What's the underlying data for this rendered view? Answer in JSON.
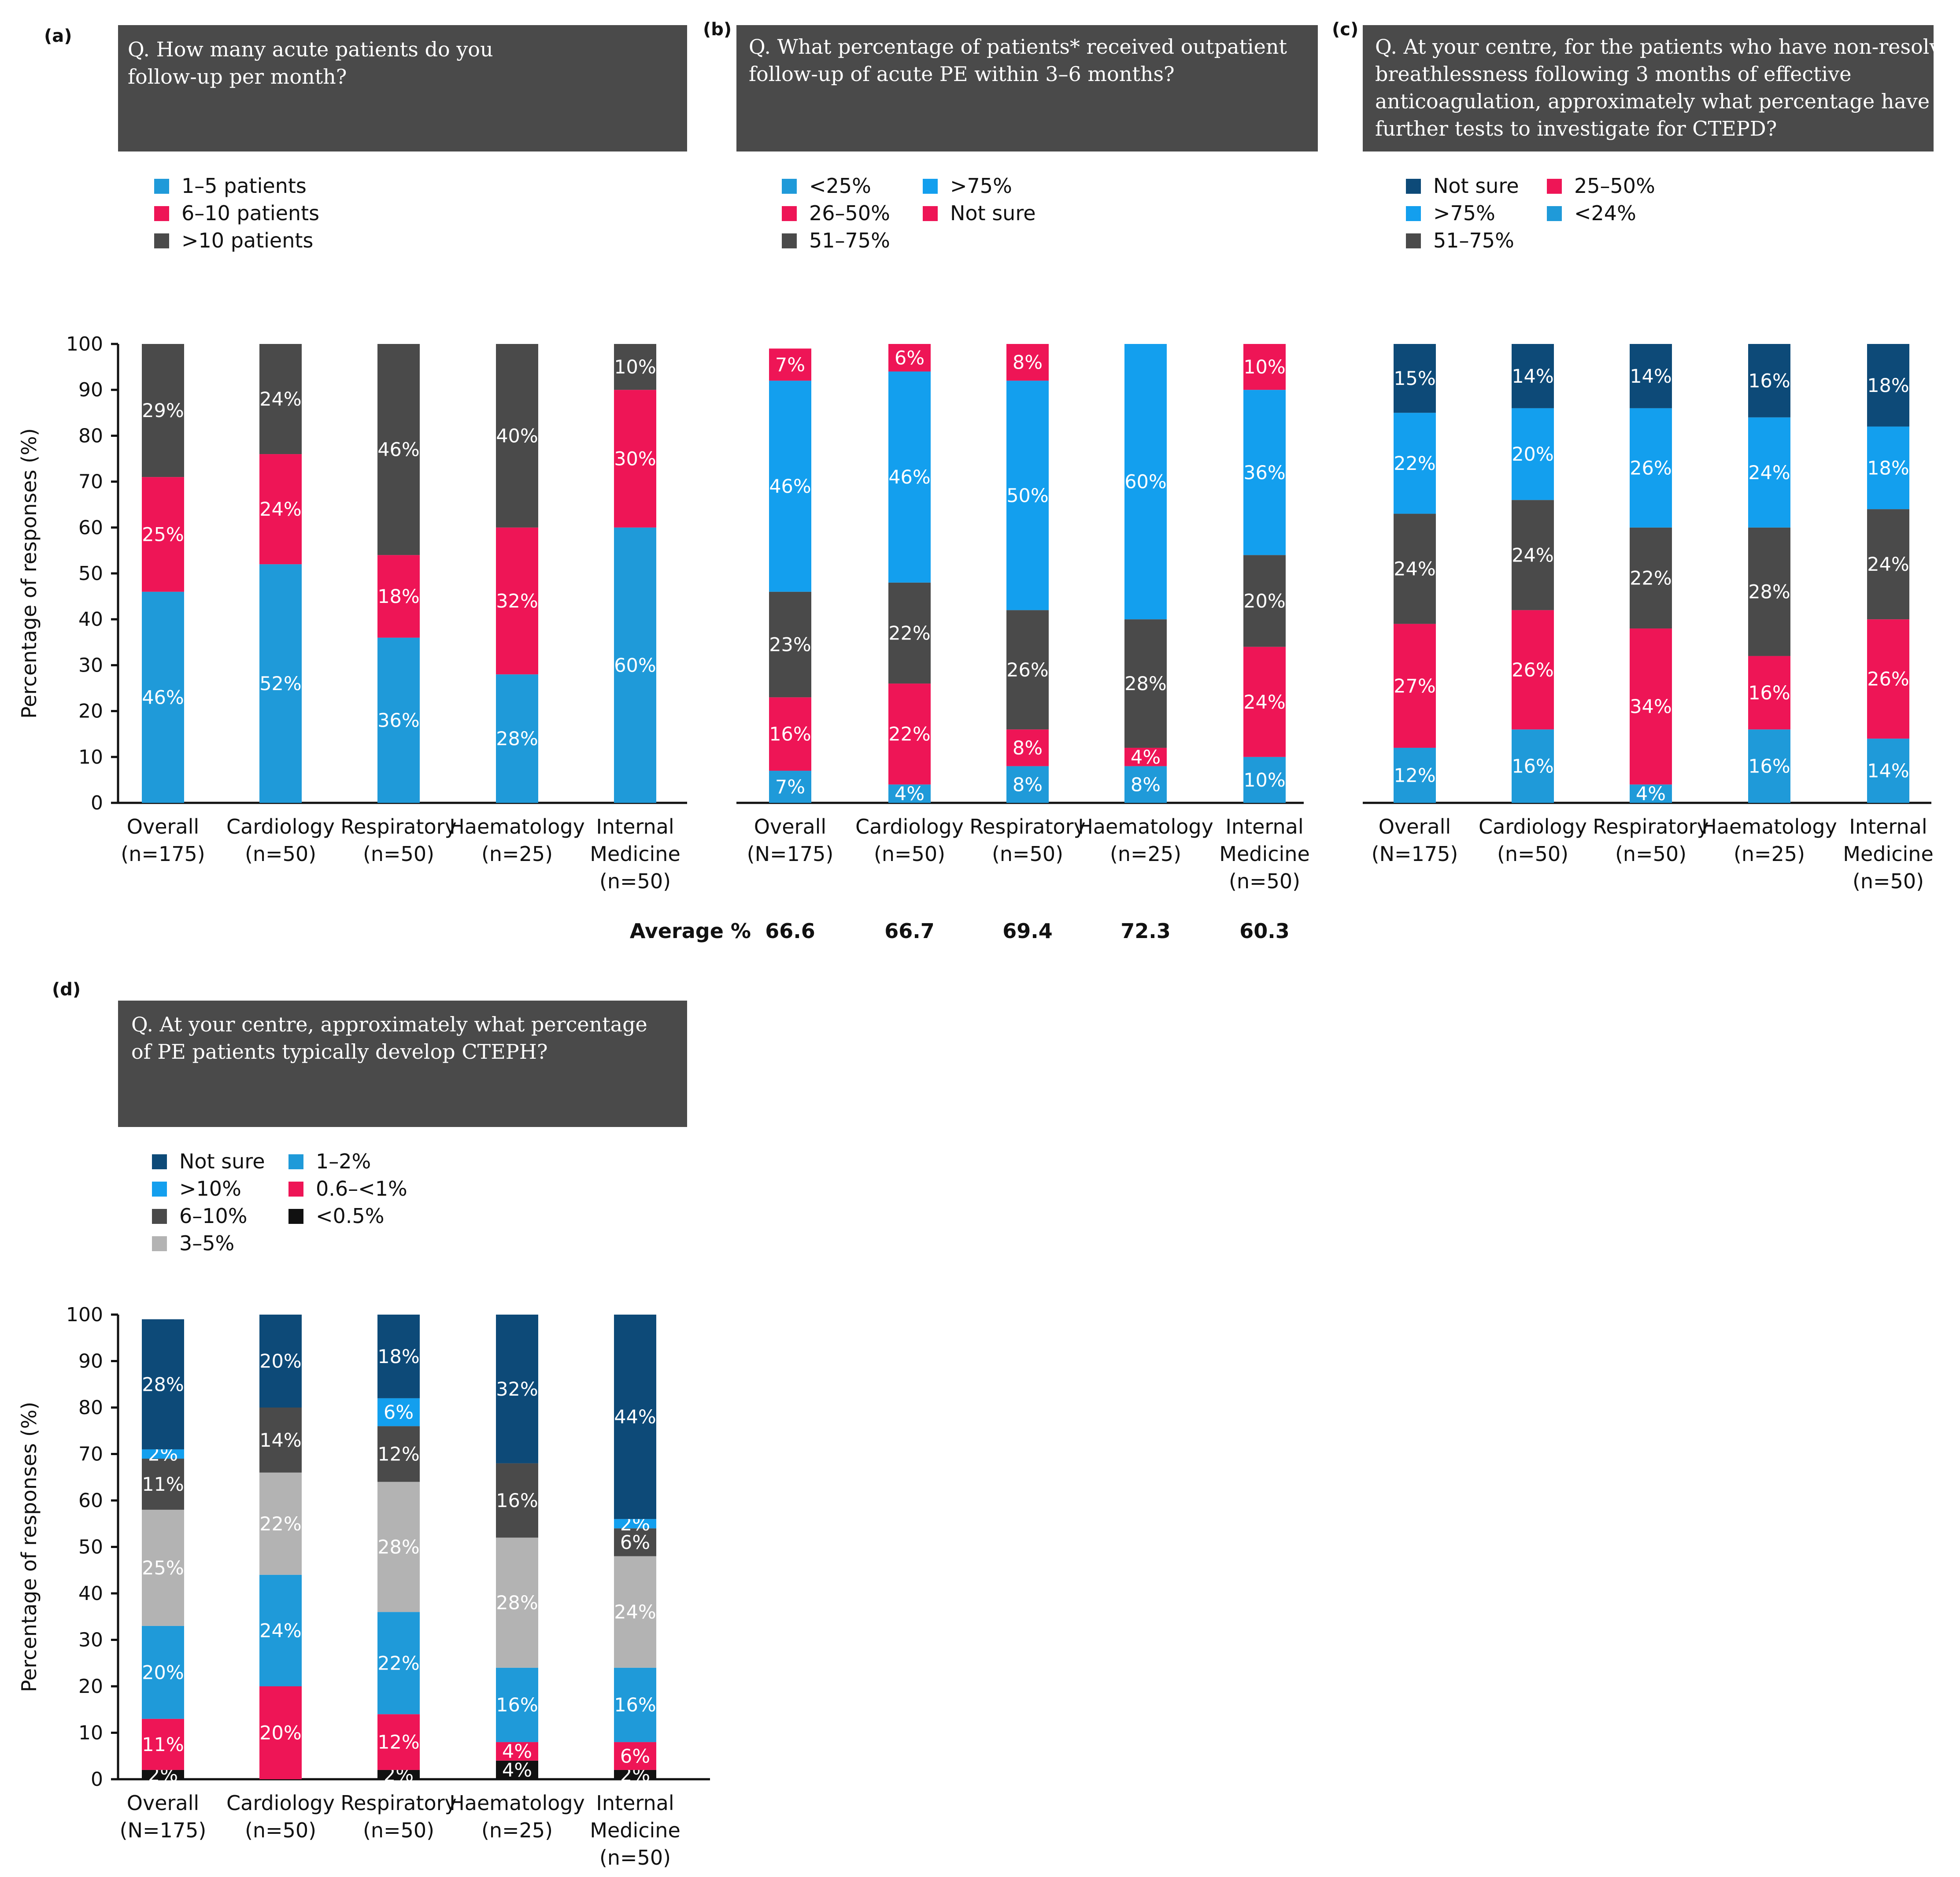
{
  "colors": {
    "dark_navy": "#0d4a78",
    "bright_blue": "#139fee",
    "medium_blue": "#1f9ad9",
    "pink": "#ee1556",
    "dark_gray": "#4a4a4a",
    "light_gray": "#b3b3b3",
    "black": "#111111",
    "header_bg": "#4a4a4a"
  },
  "chart_data": [
    {
      "panel": "(a)",
      "type": "bar",
      "stacked": true,
      "question": [
        "Q. How many acute patients do you",
        "follow-up per month?"
      ],
      "ylabel": "Percentage of responses (%)",
      "ylim": [
        0,
        100
      ],
      "yticks": [
        0,
        10,
        20,
        30,
        40,
        50,
        60,
        70,
        80,
        90,
        100
      ],
      "categories": [
        [
          "Overall",
          "(n=175)"
        ],
        [
          "Cardiology",
          "(n=50)"
        ],
        [
          "Respiratory",
          "(n=50)"
        ],
        [
          "Haematology",
          "(n=25)"
        ],
        [
          "Internal",
          "Medicine",
          "(n=50)"
        ]
      ],
      "legend": [
        {
          "label": "1–5 patients",
          "color": "#1f9ad9"
        },
        {
          "label": "6–10 patients",
          "color": "#ee1556"
        },
        {
          "label": ">10 patients",
          "color": "#4a4a4a"
        }
      ],
      "legend_columns": 1,
      "series": [
        {
          "name": "1–5 patients",
          "color": "#1f9ad9",
          "values": [
            46,
            52,
            36,
            28,
            60
          ],
          "labels": [
            "46%",
            "52%",
            "36%",
            "28%",
            "60%"
          ]
        },
        {
          "name": "6–10 patients",
          "color": "#ee1556",
          "values": [
            25,
            24,
            18,
            32,
            30
          ],
          "labels": [
            "25%",
            "24%",
            "18%",
            "32%",
            "30%"
          ]
        },
        {
          "name": ">10 patients",
          "color": "#4a4a4a",
          "values": [
            29,
            24,
            46,
            40,
            10
          ],
          "labels": [
            "29%",
            "24%",
            "46%",
            "40%",
            "10%"
          ]
        }
      ]
    },
    {
      "panel": "(b)",
      "type": "bar",
      "stacked": true,
      "question": [
        "Q. What percentage of patients* received outpatient",
        "follow-up of acute PE within 3–6 months?"
      ],
      "ylim": [
        0,
        100
      ],
      "categories": [
        [
          "Overall",
          "(N=175)"
        ],
        [
          "Cardiology",
          "(n=50)"
        ],
        [
          "Respiratory",
          "(n=50)"
        ],
        [
          "Haematology",
          "(n=25)"
        ],
        [
          "Internal",
          "Medicine",
          "(n=50)"
        ]
      ],
      "legend": [
        {
          "label": "<25%",
          "color": "#1f9ad9"
        },
        {
          "label": "26–50%",
          "color": "#ee1556"
        },
        {
          "label": "51–75%",
          "color": "#4a4a4a"
        },
        {
          "label": ">75%",
          "color": "#139fee"
        },
        {
          "label": "Not sure",
          "color": "#ee1556"
        }
      ],
      "legend_columns": 2,
      "series": [
        {
          "name": "<25%",
          "color": "#1f9ad9",
          "values": [
            7,
            4,
            8,
            8,
            10
          ],
          "labels": [
            "7%",
            "4%",
            "8%",
            "8%",
            "10%"
          ]
        },
        {
          "name": "26–50%",
          "color": "#ee1556",
          "values": [
            16,
            22,
            8,
            4,
            24
          ],
          "labels": [
            "16%",
            "22%",
            "8%",
            "4%",
            "24%"
          ]
        },
        {
          "name": "51–75%",
          "color": "#4a4a4a",
          "values": [
            23,
            22,
            26,
            28,
            20
          ],
          "labels": [
            "23%",
            "22%",
            "26%",
            "28%",
            "20%"
          ]
        },
        {
          "name": ">75%",
          "color": "#139fee",
          "values": [
            46,
            46,
            50,
            60,
            36
          ],
          "labels": [
            "46%",
            "46%",
            "50%",
            "60%",
            "36%"
          ]
        },
        {
          "name": "Not sure",
          "color": "#ee1556",
          "values": [
            7,
            6,
            8,
            0,
            10
          ],
          "labels": [
            "7%",
            "6%",
            "8%",
            "",
            "10%"
          ]
        }
      ],
      "average_label": "Average %",
      "averages": [
        "66.6",
        "66.7",
        "69.4",
        "72.3",
        "60.3"
      ]
    },
    {
      "panel": "(c)",
      "type": "bar",
      "stacked": true,
      "question": [
        "Q. At your centre, for the patients who have non-resolving",
        "breathlessness following 3 months of effective",
        "anticoagulation, approximately what percentage have",
        "further tests to investigate for CTEPD?"
      ],
      "ylim": [
        0,
        100
      ],
      "categories": [
        [
          "Overall",
          "(N=175)"
        ],
        [
          "Cardiology",
          "(n=50)"
        ],
        [
          "Respiratory",
          "(n=50)"
        ],
        [
          "Haematology",
          "(n=25)"
        ],
        [
          "Internal",
          "Medicine",
          "(n=50)"
        ]
      ],
      "legend": [
        {
          "label": "Not sure",
          "color": "#0d4a78"
        },
        {
          "label": ">75%",
          "color": "#139fee"
        },
        {
          "label": "51–75%",
          "color": "#4a4a4a"
        },
        {
          "label": "25–50%",
          "color": "#ee1556"
        },
        {
          "label": "<24%",
          "color": "#1f9ad9"
        }
      ],
      "legend_columns": 2,
      "series": [
        {
          "name": "<24%",
          "color": "#1f9ad9",
          "values": [
            12,
            16,
            4,
            16,
            14
          ],
          "labels": [
            "12%",
            "16%",
            "4%",
            "16%",
            "14%"
          ]
        },
        {
          "name": "25–50%",
          "color": "#ee1556",
          "values": [
            27,
            26,
            34,
            16,
            26
          ],
          "labels": [
            "27%",
            "26%",
            "34%",
            "16%",
            "26%"
          ]
        },
        {
          "name": "51–75%",
          "color": "#4a4a4a",
          "values": [
            24,
            24,
            22,
            28,
            24
          ],
          "labels": [
            "24%",
            "24%",
            "22%",
            "28%",
            "24%"
          ]
        },
        {
          "name": ">75%",
          "color": "#139fee",
          "values": [
            22,
            20,
            26,
            24,
            18
          ],
          "labels": [
            "22%",
            "20%",
            "26%",
            "24%",
            "18%"
          ]
        },
        {
          "name": "Not sure",
          "color": "#0d4a78",
          "values": [
            15,
            14,
            14,
            16,
            18
          ],
          "labels": [
            "15%",
            "14%",
            "14%",
            "16%",
            "18%"
          ]
        }
      ]
    },
    {
      "panel": "(d)",
      "type": "bar",
      "stacked": true,
      "question": [
        "Q. At your centre, approximately what percentage",
        "of PE patients typically develop CTEPH?"
      ],
      "ylabel": "Percentage of responses (%)",
      "ylim": [
        0,
        100
      ],
      "yticks": [
        0,
        10,
        20,
        30,
        40,
        50,
        60,
        70,
        80,
        90,
        100
      ],
      "categories": [
        [
          "Overall",
          "(N=175)"
        ],
        [
          "Cardiology",
          "(n=50)"
        ],
        [
          "Respiratory",
          "(n=50)"
        ],
        [
          "Haematology",
          "(n=25)"
        ],
        [
          "Internal",
          "Medicine",
          "(n=50)"
        ]
      ],
      "legend": [
        {
          "label": "Not sure",
          "color": "#0d4a78"
        },
        {
          "label": ">10%",
          "color": "#139fee"
        },
        {
          "label": "6–10%",
          "color": "#4a4a4a"
        },
        {
          "label": "3–5%",
          "color": "#b3b3b3"
        },
        {
          "label": "1–2%",
          "color": "#1f9ad9"
        },
        {
          "label": "0.6–<1%",
          "color": "#ee1556"
        },
        {
          "label": "<0.5%",
          "color": "#111111"
        }
      ],
      "legend_columns": 2,
      "series": [
        {
          "name": "<0.5%",
          "color": "#111111",
          "values": [
            2,
            0,
            2,
            4,
            2
          ],
          "labels": [
            "2%",
            "",
            "2%",
            "4%",
            "2%"
          ]
        },
        {
          "name": "0.6–<1%",
          "color": "#ee1556",
          "values": [
            11,
            20,
            12,
            4,
            6
          ],
          "labels": [
            "11%",
            "20%",
            "12%",
            "4%",
            "6%"
          ]
        },
        {
          "name": "1–2%",
          "color": "#1f9ad9",
          "values": [
            20,
            24,
            22,
            16,
            16
          ],
          "labels": [
            "20%",
            "24%",
            "22%",
            "16%",
            "16%"
          ]
        },
        {
          "name": "3–5%",
          "color": "#b3b3b3",
          "values": [
            25,
            22,
            28,
            28,
            24
          ],
          "labels": [
            "25%",
            "22%",
            "28%",
            "28%",
            "24%"
          ]
        },
        {
          "name": "6–10%",
          "color": "#4a4a4a",
          "values": [
            11,
            14,
            12,
            16,
            6
          ],
          "labels": [
            "11%",
            "14%",
            "12%",
            "16%",
            "6%"
          ]
        },
        {
          "name": ">10%",
          "color": "#139fee",
          "values": [
            2,
            0,
            6,
            0,
            2
          ],
          "labels": [
            "2%",
            "",
            "6%",
            "",
            "2%"
          ]
        },
        {
          "name": "Not sure",
          "color": "#0d4a78",
          "values": [
            28,
            20,
            18,
            32,
            44
          ],
          "labels": [
            "28%",
            "20%",
            "18%",
            "32%",
            "44%"
          ]
        }
      ]
    }
  ]
}
